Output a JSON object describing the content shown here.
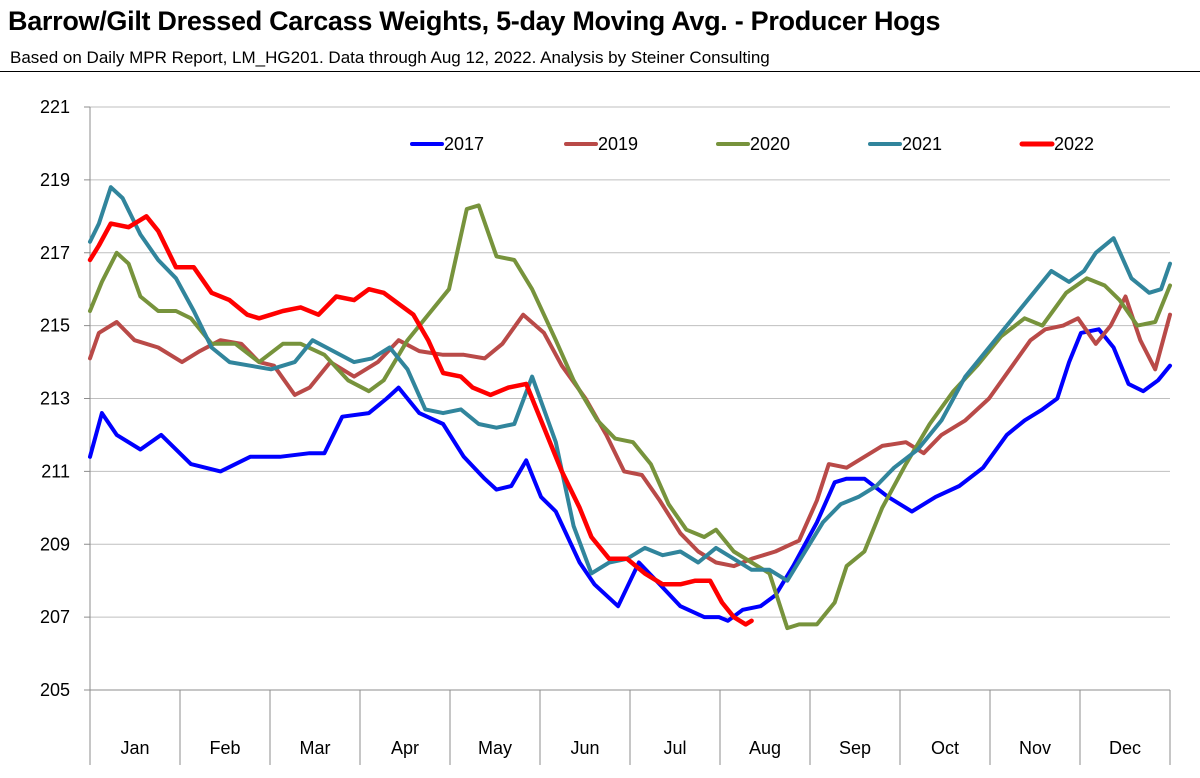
{
  "title": "Barrow/Gilt Dressed Carcass Weights, 5-day Moving Avg. - Producer Hogs",
  "subtitle": "Based on Daily MPR Report, LM_HG201.  Data through Aug 12, 2022.  Analysis by Steiner Consulting",
  "chart_data": {
    "type": "line",
    "title": "Barrow/Gilt Dressed Carcass Weights, 5-day Moving Avg. - Producer Hogs",
    "xlabel": "",
    "ylabel": "",
    "x_unit": "day of year",
    "xlim": [
      1,
      365
    ],
    "ylim": [
      205,
      221
    ],
    "yticks": [
      205,
      207,
      209,
      211,
      213,
      215,
      217,
      219,
      221
    ],
    "month_labels": [
      "Jan",
      "Feb",
      "Mar",
      "Apr",
      "May",
      "Jun",
      "Jul",
      "Aug",
      "Sep",
      "Oct",
      "Nov",
      "Dec"
    ],
    "grid": "horizontal",
    "legend_position": "top",
    "series": [
      {
        "name": "2017",
        "color": "#0000ff",
        "x": [
          1,
          5,
          10,
          18,
          25,
          35,
          45,
          55,
          65,
          75,
          80,
          86,
          95,
          101,
          105,
          112,
          120,
          127,
          134,
          138,
          143,
          148,
          153,
          158,
          166,
          171,
          179,
          186,
          193,
          200,
          208,
          213,
          216,
          221,
          227,
          232,
          238,
          246,
          252,
          256,
          262,
          270,
          278,
          286,
          294,
          302,
          310,
          316,
          322,
          327,
          331,
          335,
          341,
          346,
          351,
          356,
          361,
          365
        ],
        "values": [
          211.4,
          212.6,
          212.0,
          211.6,
          212.0,
          211.2,
          211.0,
          211.4,
          211.4,
          211.5,
          211.5,
          212.5,
          212.6,
          213.0,
          213.3,
          212.6,
          212.3,
          211.4,
          210.8,
          210.5,
          210.6,
          211.3,
          210.3,
          209.9,
          208.5,
          207.9,
          207.3,
          208.5,
          207.9,
          207.3,
          207.0,
          207.0,
          206.9,
          207.2,
          207.3,
          207.6,
          208.4,
          209.6,
          210.7,
          210.8,
          210.8,
          210.3,
          209.9,
          210.3,
          210.6,
          211.1,
          212.0,
          212.4,
          212.7,
          213.0,
          214.0,
          214.8,
          214.9,
          214.4,
          213.4,
          213.2,
          213.5,
          213.9
        ]
      },
      {
        "name": "2019",
        "color": "#b94a48",
        "x": [
          1,
          4,
          10,
          16,
          24,
          32,
          38,
          45,
          52,
          58,
          63,
          70,
          75,
          82,
          90,
          98,
          105,
          112,
          120,
          127,
          134,
          140,
          147,
          154,
          160,
          168,
          175,
          181,
          187,
          193,
          200,
          206,
          212,
          218,
          224,
          232,
          240,
          246,
          250,
          256,
          262,
          268,
          276,
          282,
          288,
          296,
          304,
          311,
          318,
          323,
          329,
          334,
          340,
          345,
          350,
          355,
          360,
          365
        ],
        "values": [
          214.1,
          214.8,
          215.1,
          214.6,
          214.4,
          214.0,
          214.3,
          214.6,
          214.5,
          214.0,
          213.9,
          213.1,
          213.3,
          214.0,
          213.6,
          214.0,
          214.6,
          214.3,
          214.2,
          214.2,
          214.1,
          214.5,
          215.3,
          214.8,
          213.9,
          213.0,
          212.0,
          211.0,
          210.9,
          210.2,
          209.3,
          208.8,
          208.5,
          208.4,
          208.6,
          208.8,
          209.1,
          210.2,
          211.2,
          211.1,
          211.4,
          211.7,
          211.8,
          211.5,
          212.0,
          212.4,
          213.0,
          213.8,
          214.6,
          214.9,
          215.0,
          215.2,
          214.5,
          215.0,
          215.8,
          214.6,
          213.8,
          215.3
        ]
      },
      {
        "name": "2020",
        "color": "#77933c",
        "x": [
          1,
          5,
          10,
          14,
          18,
          24,
          30,
          35,
          42,
          50,
          58,
          66,
          72,
          80,
          88,
          95,
          100,
          108,
          115,
          122,
          128,
          132,
          138,
          144,
          150,
          158,
          164,
          172,
          178,
          184,
          190,
          196,
          202,
          208,
          212,
          218,
          224,
          230,
          236,
          240,
          246,
          252,
          256,
          262,
          268,
          276,
          284,
          292,
          300,
          308,
          316,
          322,
          330,
          337,
          343,
          348,
          354,
          360,
          365
        ],
        "values": [
          215.4,
          216.2,
          217.0,
          216.7,
          215.8,
          215.4,
          215.4,
          215.2,
          214.5,
          214.5,
          214.0,
          214.5,
          214.5,
          214.2,
          213.5,
          213.2,
          213.5,
          214.6,
          215.3,
          216.0,
          218.2,
          218.3,
          216.9,
          216.8,
          216.0,
          214.6,
          213.5,
          212.4,
          211.9,
          211.8,
          211.2,
          210.1,
          209.4,
          209.2,
          209.4,
          208.8,
          208.5,
          208.2,
          206.7,
          206.8,
          206.8,
          207.4,
          208.4,
          208.8,
          210.0,
          211.2,
          212.3,
          213.2,
          213.9,
          214.7,
          215.2,
          215.0,
          215.9,
          216.3,
          216.1,
          215.7,
          215.0,
          215.1,
          216.1
        ]
      },
      {
        "name": "2021",
        "color": "#31859c",
        "x": [
          1,
          4,
          8,
          12,
          18,
          24,
          30,
          36,
          42,
          48,
          55,
          62,
          70,
          76,
          83,
          90,
          96,
          102,
          108,
          114,
          120,
          126,
          132,
          138,
          144,
          150,
          158,
          164,
          170,
          176,
          182,
          188,
          194,
          200,
          206,
          212,
          218,
          224,
          230,
          236,
          242,
          248,
          254,
          260,
          266,
          272,
          280,
          288,
          296,
          304,
          310,
          316,
          320,
          325,
          331,
          336,
          340,
          346,
          352,
          358,
          362,
          365
        ],
        "values": [
          217.3,
          217.8,
          218.8,
          218.5,
          217.5,
          216.8,
          216.3,
          215.4,
          214.4,
          214.0,
          213.9,
          213.8,
          214.0,
          214.6,
          214.3,
          214.0,
          214.1,
          214.4,
          213.8,
          212.7,
          212.6,
          212.7,
          212.3,
          212.2,
          212.3,
          213.6,
          211.8,
          209.5,
          208.2,
          208.5,
          208.6,
          208.9,
          208.7,
          208.8,
          208.5,
          208.9,
          208.6,
          208.3,
          208.3,
          208.0,
          208.8,
          209.6,
          210.1,
          210.3,
          210.6,
          211.1,
          211.6,
          212.4,
          213.6,
          214.4,
          215.0,
          215.6,
          216.0,
          216.5,
          216.2,
          216.5,
          217.0,
          217.4,
          216.3,
          215.9,
          216.0,
          216.7
        ]
      },
      {
        "name": "2022",
        "color": "#ff0000",
        "x": [
          1,
          4,
          8,
          14,
          20,
          24,
          30,
          36,
          42,
          48,
          54,
          58,
          62,
          66,
          72,
          78,
          84,
          90,
          95,
          100,
          105,
          110,
          115,
          120,
          126,
          130,
          136,
          142,
          148,
          154,
          160,
          166,
          170,
          176,
          182,
          188,
          194,
          200,
          205,
          210,
          214,
          218,
          222,
          224
        ],
        "values": [
          216.8,
          217.2,
          217.8,
          217.7,
          218.0,
          217.6,
          216.6,
          216.6,
          215.9,
          215.7,
          215.3,
          215.2,
          215.3,
          215.4,
          215.5,
          215.3,
          215.8,
          215.7,
          216.0,
          215.9,
          215.6,
          215.3,
          214.6,
          213.7,
          213.6,
          213.3,
          213.1,
          213.3,
          213.4,
          212.2,
          211.0,
          210.0,
          209.2,
          208.6,
          208.6,
          208.2,
          207.9,
          207.9,
          208.0,
          208.0,
          207.4,
          207.0,
          206.8,
          206.9
        ]
      }
    ]
  }
}
